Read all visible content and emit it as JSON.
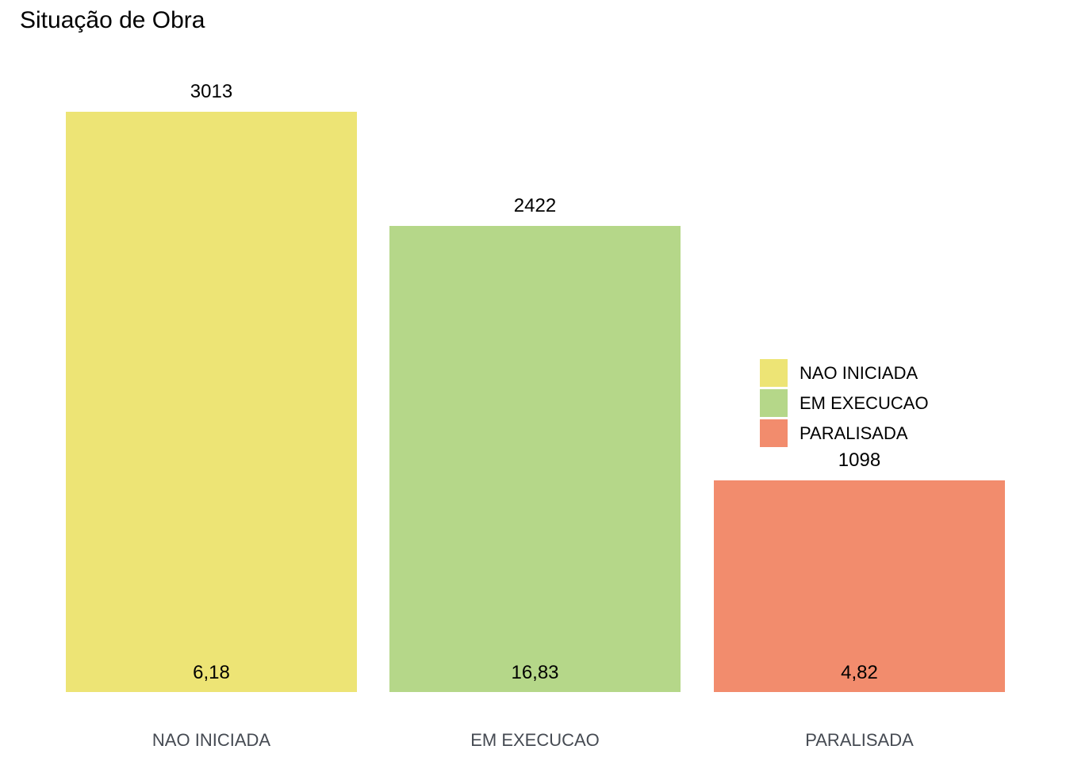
{
  "chart_data": {
    "type": "bar",
    "title": "Situação de Obra",
    "categories": [
      "NAO INICIADA",
      "EM EXECUCAO",
      "PARALISADA"
    ],
    "values": [
      3013,
      2422,
      1098
    ],
    "value_labels": [
      "3013",
      "2422",
      "1098"
    ],
    "inside_labels": [
      "6,18",
      "16,83",
      "4,82"
    ],
    "colors": [
      "#EDE475",
      "#B5D789",
      "#F28C6D"
    ],
    "xlabel": "",
    "ylabel": "",
    "ylim": [
      0,
      3013
    ],
    "grid": false,
    "axis_lines": false,
    "legend_position": "right-middle"
  },
  "legend": {
    "items": [
      {
        "label": "NAO INICIADA",
        "color": "#EDE475"
      },
      {
        "label": "EM EXECUCAO",
        "color": "#B5D789"
      },
      {
        "label": "PARALISADA",
        "color": "#F28C6D"
      }
    ]
  }
}
